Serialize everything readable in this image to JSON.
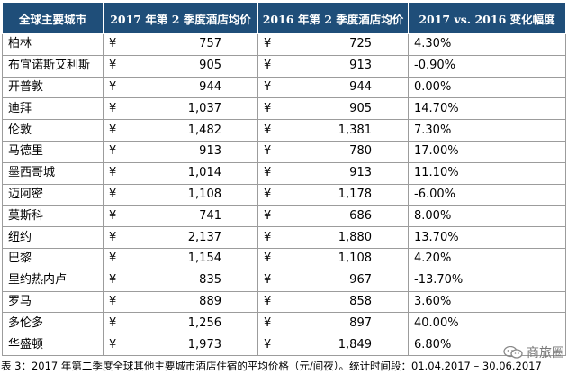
{
  "table": {
    "headers": [
      "全球主要城市",
      "2017 年第 2 季度酒店均价",
      "2016 年第 2 季度酒店均价",
      "2017 vs. 2016 变化幅度"
    ],
    "currency_symbol": "¥",
    "rows": [
      {
        "city": "柏林",
        "p2017": "757",
        "p2016": "725",
        "change": "4.30%"
      },
      {
        "city": "布宜诺斯艾利斯",
        "p2017": "905",
        "p2016": "913",
        "change": "-0.90%"
      },
      {
        "city": "开普敦",
        "p2017": "944",
        "p2016": "944",
        "change": "0.00%"
      },
      {
        "city": "迪拜",
        "p2017": "1,037",
        "p2016": "905",
        "change": "14.70%"
      },
      {
        "city": "伦敦",
        "p2017": "1,482",
        "p2016": "1,381",
        "change": "7.30%"
      },
      {
        "city": "马德里",
        "p2017": "913",
        "p2016": "780",
        "change": "17.00%"
      },
      {
        "city": "墨西哥城",
        "p2017": "1,014",
        "p2016": "913",
        "change": "11.10%"
      },
      {
        "city": "迈阿密",
        "p2017": "1,108",
        "p2016": "1,178",
        "change": "-6.00%"
      },
      {
        "city": "莫斯科",
        "p2017": "741",
        "p2016": "686",
        "change": "8.00%"
      },
      {
        "city": "纽约",
        "p2017": "2,137",
        "p2016": "1,880",
        "change": "13.70%"
      },
      {
        "city": "巴黎",
        "p2017": "1,154",
        "p2016": "1,108",
        "change": "4.20%"
      },
      {
        "city": "里约热内卢",
        "p2017": "835",
        "p2016": "967",
        "change": "-13.70%"
      },
      {
        "city": "罗马",
        "p2017": "889",
        "p2016": "858",
        "change": "3.60%"
      },
      {
        "city": "多伦多",
        "p2017": "1,256",
        "p2016": "897",
        "change": "40.00%"
      },
      {
        "city": "华盛顿",
        "p2017": "1,973",
        "p2016": "1,849",
        "change": "6.80%"
      }
    ]
  },
  "caption": "表 3：2017 年第二季度全球其他主要城市酒店住宿的平均价格（元/间夜）。统计时间段：01.04.2017 – 30.06.2017",
  "watermark": {
    "text": "商旅圈",
    "icon": "wechat-icon",
    "color": "#777777"
  }
}
